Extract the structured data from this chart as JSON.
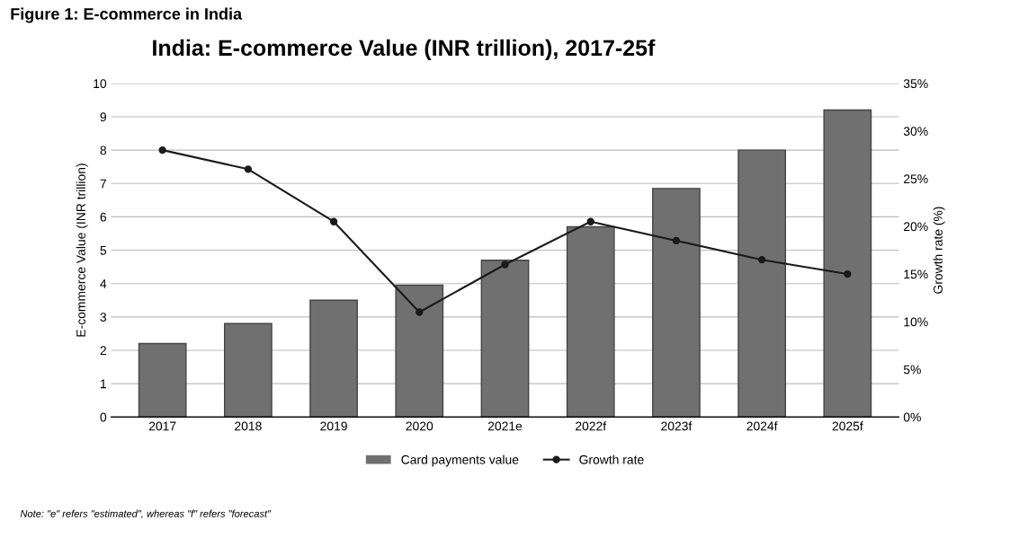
{
  "chart_data": {
    "type": "bar",
    "title": "India: E-commerce Value (INR trillion), 2017-25f",
    "ylabel": "E-commerce Value (INR trillion)",
    "y2label": "Growth rate (%)",
    "categories": [
      "2017",
      "2018",
      "2019",
      "2020",
      "2021e",
      "2022f",
      "2023f",
      "2024f",
      "2025f"
    ],
    "series": [
      {
        "name": "Card payments value",
        "color": "#707070",
        "values": [
          2.2,
          2.8,
          3.5,
          3.95,
          4.7,
          5.7,
          6.85,
          8.0,
          9.2
        ]
      },
      {
        "name": "Growth rate",
        "type": "line",
        "axis": "y2",
        "color": "#1a1a1a",
        "marker": "circle",
        "values": [
          28,
          26,
          20.5,
          11,
          16,
          20.5,
          18.5,
          16.5,
          15
        ]
      }
    ],
    "ylim": [
      0,
      10
    ],
    "yticks": [
      0,
      1,
      2,
      3,
      4,
      5,
      6,
      7,
      8,
      9,
      10
    ],
    "y2lim": [
      0,
      35
    ],
    "y2ticks": [
      {
        "value": 0,
        "label": "0%"
      },
      {
        "value": 5,
        "label": "5%"
      },
      {
        "value": 10,
        "label": "10%"
      },
      {
        "value": 15,
        "label": "15%"
      },
      {
        "value": 20,
        "label": "20%"
      },
      {
        "value": 25,
        "label": "25%"
      },
      {
        "value": 30,
        "label": "30%"
      },
      {
        "value": 35,
        "label": "35%"
      }
    ],
    "grid": "y",
    "legend": "bottom",
    "annotations": [
      "Figure 1: E-commerce in India",
      "Note: \"e\" refers \"estimated\", whereas \"f\" refers \"forecast\""
    ]
  }
}
